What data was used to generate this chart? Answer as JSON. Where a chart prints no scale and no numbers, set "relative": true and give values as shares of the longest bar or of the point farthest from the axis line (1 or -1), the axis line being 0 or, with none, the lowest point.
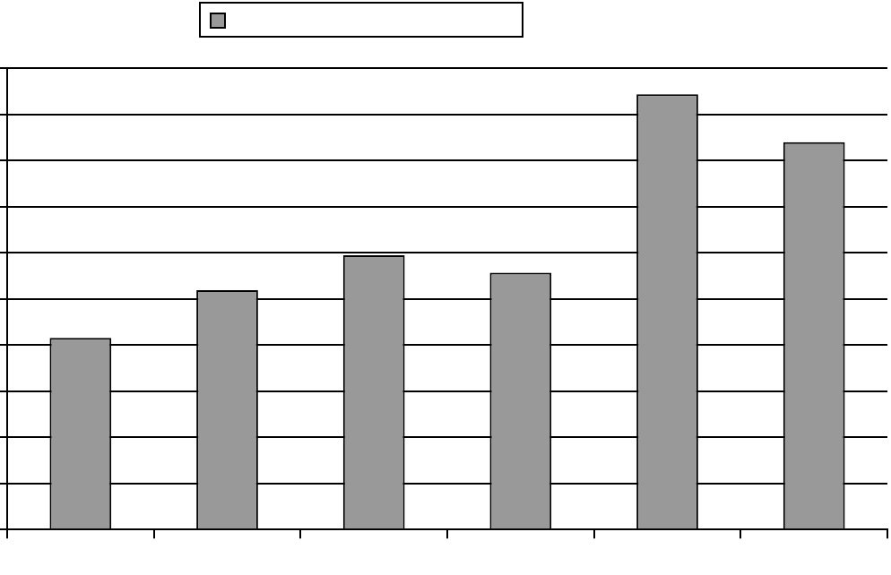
{
  "chart_data": {
    "type": "bar",
    "relative": true,
    "categories": [
      null,
      null,
      null,
      null,
      null,
      null
    ],
    "series": [
      {
        "color": "#999999",
        "values": [
          0.44,
          0.55,
          0.63,
          0.59,
          1,
          0.89
        ]
      }
    ],
    "grid": "y"
  }
}
